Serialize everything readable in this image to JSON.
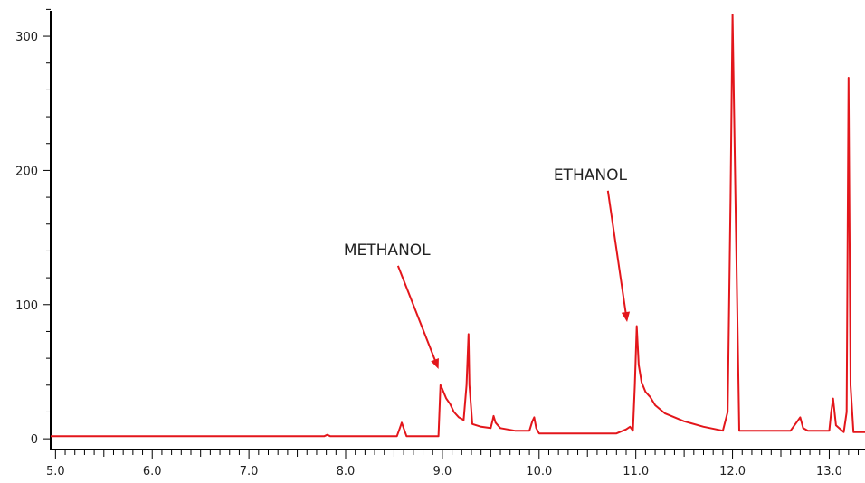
{
  "colors": {
    "trace": "#e3161b",
    "arrow": "#e3161b",
    "axis": "#000000",
    "text": "#222222",
    "background": "#ffffff"
  },
  "chart_data": {
    "type": "line",
    "title": "",
    "xlabel": "",
    "ylabel": "",
    "xlim": [
      4.95,
      13.37
    ],
    "ylim": [
      -8,
      327
    ],
    "grid": false,
    "x_ticks": [
      5.0,
      6.0,
      7.0,
      8.0,
      9.0,
      10.0,
      11.0,
      12.0,
      13.0
    ],
    "x_tick_labels": [
      "5.0",
      "6.0",
      "7.0",
      "8.0",
      "9.0",
      "10.0",
      "11.0",
      "12.0",
      "13.0"
    ],
    "y_ticks": [
      0,
      100,
      200,
      300
    ],
    "y_tick_labels": [
      "0",
      "100",
      "200",
      "300"
    ],
    "series": [
      {
        "x": [
          4.95,
          7.78,
          7.81,
          7.84,
          8.53,
          8.56,
          8.58,
          8.6,
          8.63,
          8.96,
          8.98,
          9.0,
          9.04,
          9.08,
          9.12,
          9.17,
          9.22,
          9.25,
          9.27,
          9.28,
          9.31,
          9.4,
          9.5,
          9.52,
          9.53,
          9.55,
          9.6,
          9.75,
          9.9,
          9.93,
          9.95,
          9.97,
          10.0,
          10.2,
          10.5,
          10.8,
          10.9,
          10.94,
          10.97,
          10.99,
          11.01,
          11.03,
          11.06,
          11.1,
          11.15,
          11.2,
          11.3,
          11.5,
          11.7,
          11.9,
          11.95,
          11.98,
          12.0,
          12.03,
          12.07,
          12.3,
          12.6,
          12.67,
          12.7,
          12.73,
          12.78,
          13.0,
          13.02,
          13.04,
          13.07,
          13.15,
          13.18,
          13.2,
          13.22,
          13.25,
          13.37
        ],
        "y": [
          2,
          2,
          3,
          2,
          2,
          8,
          12,
          8,
          2,
          2,
          40,
          37,
          30,
          26,
          20,
          16,
          14,
          40,
          78,
          40,
          11,
          9,
          8,
          14,
          17,
          12,
          8,
          6,
          6,
          13,
          16,
          8,
          4,
          4,
          4,
          4,
          7,
          9,
          6,
          40,
          84,
          55,
          42,
          35,
          31,
          25,
          19,
          13,
          9,
          6,
          20,
          180,
          316,
          180,
          6,
          6,
          6,
          13,
          16,
          8,
          6,
          6,
          20,
          30,
          10,
          5,
          20,
          269,
          40,
          5,
          5
        ]
      }
    ],
    "annotations": [
      {
        "text": "METHANOL",
        "point_x": 8.96,
        "point_y": 52,
        "label_x": 7.98,
        "label_y": 137
      },
      {
        "text": "ETHANOL",
        "point_x": 10.91,
        "point_y": 87,
        "label_x": 10.15,
        "label_y": 193
      }
    ]
  }
}
